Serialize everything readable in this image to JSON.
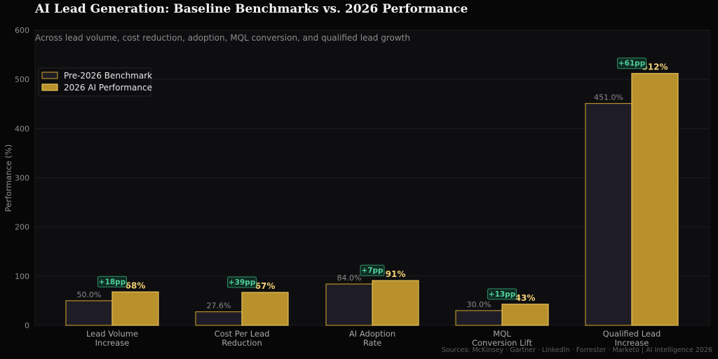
{
  "chart_data": {
    "type": "bar",
    "title": "AI Lead Generation: Baseline Benchmarks vs. 2026 Performance",
    "subtitle": "Across lead volume, cost reduction, adoption, MQL conversion, and qualified lead growth",
    "xlabel": "",
    "ylabel": "Performance (%)",
    "ylim": [
      0,
      600
    ],
    "yticks": [
      0,
      100,
      200,
      300,
      400,
      500,
      600
    ],
    "grid": true,
    "legend_position": "top-left",
    "categories": [
      [
        "Lead Volume",
        "Increase"
      ],
      [
        "Cost Per Lead",
        "Reduction"
      ],
      [
        "AI Adoption",
        "Rate"
      ],
      [
        "MQL",
        "Conversion Lift"
      ],
      [
        "Qualified Lead",
        "Increase"
      ]
    ],
    "series": [
      {
        "name": "Pre-2026 Benchmark",
        "values": [
          50.0,
          27.6,
          84.0,
          30.0,
          451.0
        ],
        "labels": [
          "50.0%",
          "27.6%",
          "84.0%",
          "30.0%",
          "451.0%"
        ],
        "color": "#1e1d26",
        "edge_color": "#b8902b",
        "label_color": "#8a8a8a"
      },
      {
        "name": "2026 AI Performance",
        "values": [
          68,
          67,
          91,
          43,
          512
        ],
        "labels": [
          "68%",
          "67%",
          "91%",
          "43%",
          "512%"
        ],
        "color": "#b8912c",
        "edge_color": "#e8c257",
        "label_color": "#f1cf74"
      }
    ],
    "deltas": [
      "+18pp",
      "+39pp",
      "+7pp",
      "+13pp",
      "+61pp"
    ],
    "delta_color": "#4fd19a",
    "source": "Sources: McKinsey · Gartner · LinkedIn · Forrester · Marketo  |  AI Intelligence 2026"
  }
}
